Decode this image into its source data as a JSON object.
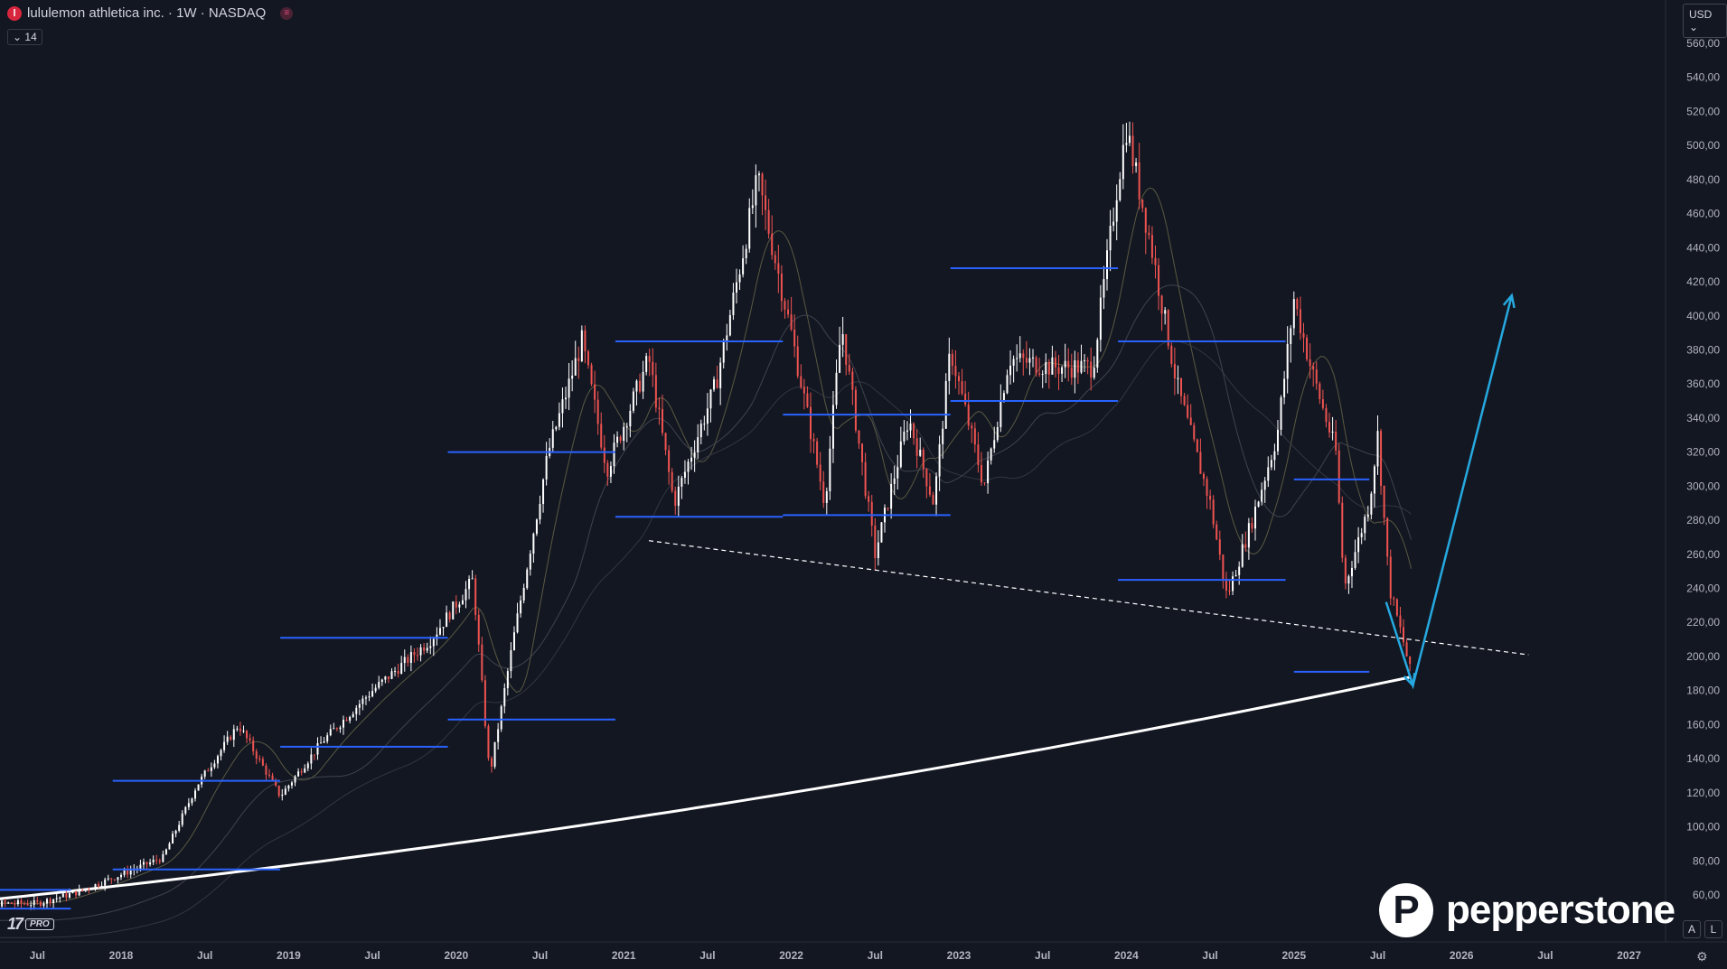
{
  "legend": {
    "logo_glyph": "l",
    "title": "lululemon athletica inc. · 1W · NASDAQ",
    "indicator_toggle": "14",
    "currency": "USD"
  },
  "branding": {
    "pro_label": "PRO",
    "tv_logo": "17",
    "watermark": "pepperstone",
    "watermark_icon": "P"
  },
  "controls": {
    "auto_label": "A",
    "log_label": "L"
  },
  "colors": {
    "background": "#131722",
    "bull_candle": "#ffffff",
    "bear_candle": "#ef5350",
    "support_resistance": "#2962ff",
    "trendline": "#ffffff",
    "long_ma": "#ffffff",
    "projection_arrow": "#26a9e0"
  },
  "chart_data": {
    "type": "candlestick",
    "symbol": "LULU",
    "timeframe": "1W",
    "exchange": "NASDAQ",
    "ylim": [
      50,
      570
    ],
    "price_ticks": [
      "560,00",
      "540,00",
      "520,00",
      "500,00",
      "480,00",
      "460,00",
      "440,00",
      "420,00",
      "400,00",
      "380,00",
      "360,00",
      "340,00",
      "320,00",
      "300,00",
      "280,00",
      "260,00",
      "240,00",
      "220,00",
      "200,00",
      "180,00",
      "160,00",
      "140,00",
      "120,00",
      "100,00",
      "80,00",
      "60,00"
    ],
    "time_ticks": [
      "Jul",
      "2018",
      "Jul",
      "2019",
      "Jul",
      "2020",
      "Jul",
      "2021",
      "Jul",
      "2022",
      "Jul",
      "2023",
      "Jul",
      "2024",
      "Jul",
      "2025",
      "Jul",
      "2026",
      "Jul",
      "2027"
    ],
    "price_path": [
      {
        "t": 2017.5,
        "p": 55
      },
      {
        "t": 2017.75,
        "p": 62
      },
      {
        "t": 2018.0,
        "p": 72
      },
      {
        "t": 2018.25,
        "p": 82
      },
      {
        "t": 2018.45,
        "p": 124
      },
      {
        "t": 2018.7,
        "p": 160
      },
      {
        "t": 2018.95,
        "p": 118
      },
      {
        "t": 2019.2,
        "p": 150
      },
      {
        "t": 2019.5,
        "p": 180
      },
      {
        "t": 2019.85,
        "p": 210
      },
      {
        "t": 2020.1,
        "p": 245
      },
      {
        "t": 2020.2,
        "p": 130
      },
      {
        "t": 2020.35,
        "p": 215
      },
      {
        "t": 2020.55,
        "p": 320
      },
      {
        "t": 2020.75,
        "p": 385
      },
      {
        "t": 2020.9,
        "p": 310
      },
      {
        "t": 2021.15,
        "p": 375
      },
      {
        "t": 2021.3,
        "p": 290
      },
      {
        "t": 2021.55,
        "p": 360
      },
      {
        "t": 2021.8,
        "p": 480
      },
      {
        "t": 2022.0,
        "p": 390
      },
      {
        "t": 2022.2,
        "p": 290
      },
      {
        "t": 2022.3,
        "p": 395
      },
      {
        "t": 2022.5,
        "p": 260
      },
      {
        "t": 2022.7,
        "p": 340
      },
      {
        "t": 2022.85,
        "p": 290
      },
      {
        "t": 2022.95,
        "p": 380
      },
      {
        "t": 2023.15,
        "p": 300
      },
      {
        "t": 2023.3,
        "p": 375
      },
      {
        "t": 2023.55,
        "p": 370
      },
      {
        "t": 2023.8,
        "p": 370
      },
      {
        "t": 2023.95,
        "p": 480
      },
      {
        "t": 2024.0,
        "p": 510
      },
      {
        "t": 2024.15,
        "p": 440
      },
      {
        "t": 2024.3,
        "p": 360
      },
      {
        "t": 2024.5,
        "p": 290
      },
      {
        "t": 2024.6,
        "p": 235
      },
      {
        "t": 2024.75,
        "p": 280
      },
      {
        "t": 2024.9,
        "p": 330
      },
      {
        "t": 2025.0,
        "p": 410
      },
      {
        "t": 2025.1,
        "p": 370
      },
      {
        "t": 2025.25,
        "p": 320
      },
      {
        "t": 2025.3,
        "p": 240
      },
      {
        "t": 2025.45,
        "p": 290
      },
      {
        "t": 2025.5,
        "p": 330
      },
      {
        "t": 2025.57,
        "p": 240
      },
      {
        "t": 2025.65,
        "p": 210
      },
      {
        "t": 2025.71,
        "p": 185
      }
    ],
    "horizontal_levels": [
      {
        "x0": 2017.0,
        "x1": 2017.7,
        "p": 63
      },
      {
        "x0": 2017.0,
        "x1": 2017.7,
        "p": 52
      },
      {
        "x0": 2017.95,
        "x1": 2018.95,
        "p": 75
      },
      {
        "x0": 2017.95,
        "x1": 2018.95,
        "p": 127
      },
      {
        "x0": 2018.95,
        "x1": 2019.95,
        "p": 211
      },
      {
        "x0": 2018.95,
        "x1": 2019.95,
        "p": 147
      },
      {
        "x0": 2019.95,
        "x1": 2020.95,
        "p": 320
      },
      {
        "x0": 2019.95,
        "x1": 2020.95,
        "p": 163
      },
      {
        "x0": 2020.95,
        "x1": 2021.95,
        "p": 385
      },
      {
        "x0": 2020.95,
        "x1": 2021.95,
        "p": 282
      },
      {
        "x0": 2021.95,
        "x1": 2022.95,
        "p": 342
      },
      {
        "x0": 2021.95,
        "x1": 2022.95,
        "p": 283
      },
      {
        "x0": 2022.95,
        "x1": 2023.95,
        "p": 428
      },
      {
        "x0": 2022.95,
        "x1": 2023.95,
        "p": 350
      },
      {
        "x0": 2023.95,
        "x1": 2024.95,
        "p": 385
      },
      {
        "x0": 2023.95,
        "x1": 2024.95,
        "p": 245
      },
      {
        "x0": 2025.0,
        "x1": 2025.45,
        "p": 304
      },
      {
        "x0": 2025.0,
        "x1": 2025.45,
        "p": 191
      }
    ],
    "trendline": {
      "t0": 2021.15,
      "p0": 268,
      "t1": 2026.4,
      "p1": 201
    },
    "long_ma_start": {
      "t": 2017.0,
      "p": 55
    },
    "long_ma_end": {
      "t": 2025.7,
      "p": 188
    },
    "projection": [
      {
        "t": 2025.55,
        "p": 232
      },
      {
        "t": 2025.71,
        "p": 183
      },
      {
        "t": 2026.3,
        "p": 412
      }
    ]
  }
}
